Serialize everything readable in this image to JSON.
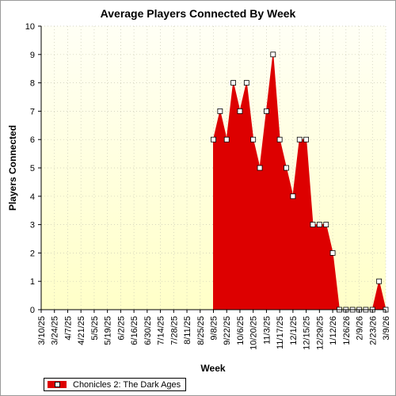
{
  "chart_data": {
    "type": "area",
    "title": "Average Players Connected By Week",
    "xlabel": "Week",
    "ylabel": "Players Connected",
    "ylim": [
      0,
      10
    ],
    "yticks": [
      "0",
      "1",
      "2",
      "3",
      "4",
      "5",
      "6",
      "7",
      "8",
      "9",
      "10"
    ],
    "grid": true,
    "legend": "bottom-left",
    "colors": {
      "fill": "#dd0000",
      "marker_fill": "#ffffff",
      "marker_stroke": "#000000",
      "plot_bg_top": "#fffff5",
      "plot_bg_bottom": "#ffffc8"
    },
    "x_tick_labels": [
      "3/10/25",
      "3/24/25",
      "4/7/25",
      "4/21/25",
      "5/5/25",
      "5/19/25",
      "6/2/25",
      "6/16/25",
      "6/30/25",
      "7/14/25",
      "7/28/25",
      "8/11/25",
      "8/25/25",
      "9/8/25",
      "9/22/25",
      "10/6/25",
      "10/20/25",
      "11/3/25",
      "11/17/25",
      "12/1/25",
      "12/15/25",
      "12/29/25",
      "1/12/26",
      "1/26/26",
      "2/9/26",
      "2/23/26",
      "3/9/26"
    ],
    "series": [
      {
        "name": "Chonicles 2: The Dark Ages",
        "x": [
          "9/8/25",
          "9/15/25",
          "9/22/25",
          "9/29/25",
          "10/6/25",
          "10/13/25",
          "10/20/25",
          "10/27/25",
          "11/3/25",
          "11/10/25",
          "11/17/25",
          "11/24/25",
          "12/1/25",
          "12/8/25",
          "12/15/25",
          "12/22/25",
          "12/29/25",
          "1/5/26",
          "1/12/26",
          "1/19/26",
          "1/26/26",
          "2/2/26",
          "2/9/26",
          "2/16/26",
          "2/23/26",
          "3/2/26",
          "3/9/26"
        ],
        "values": [
          6,
          7,
          6,
          8,
          7,
          8,
          6,
          5,
          7,
          9,
          6,
          5,
          4,
          6,
          6,
          3,
          3,
          3,
          2,
          0,
          0,
          0,
          0,
          0,
          0,
          1,
          0
        ]
      }
    ]
  }
}
